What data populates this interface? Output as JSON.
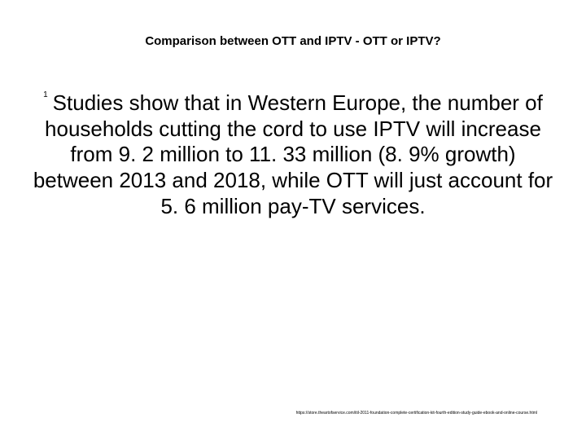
{
  "slide": {
    "title": "Comparison between OTT and IPTV - OTT or IPTV?",
    "title_fontsize": 15,
    "title_color": "#000000",
    "bullet_marker": "1",
    "body": "Studies show that in Western Europe, the number of households cutting the cord to use IPTV will increase from 9. 2 million to 11. 33 million (8. 9% growth) between 2013 and 2018, while OTT will just account for 5. 6 million pay-TV services.",
    "body_fontsize": 26,
    "body_color": "#000000",
    "footer_url": "https://store.theartofservice.com/itil-2011-foundation-complete-certification-kit-fourth-edition-study-guide-ebook-and-online-course.html",
    "footer_fontsize": 5,
    "footer_color": "#000000",
    "background_color": "#ffffff"
  }
}
